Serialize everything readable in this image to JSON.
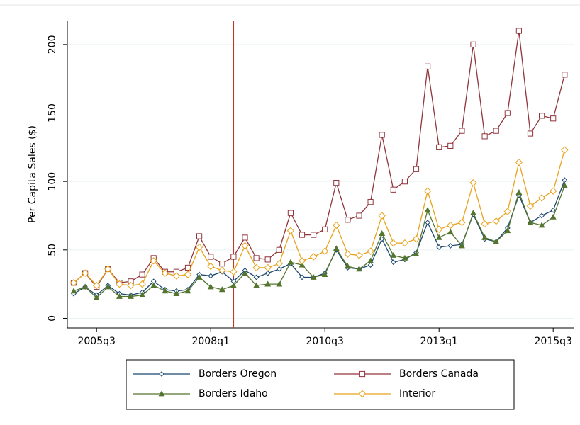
{
  "chart_data": {
    "type": "line",
    "ylabel": "Per Capita Sales ($)",
    "categories": [
      null,
      null,
      "2005q3",
      null,
      null,
      null,
      null,
      null,
      null,
      null,
      null,
      null,
      "2008q1",
      null,
      null,
      null,
      null,
      null,
      null,
      null,
      null,
      null,
      "2010q3",
      null,
      null,
      null,
      null,
      null,
      null,
      null,
      null,
      null,
      "2013q1",
      null,
      null,
      null,
      null,
      null,
      null,
      null,
      null,
      null,
      "2015q3",
      null
    ],
    "ylim": [
      -7,
      217
    ],
    "yticks": [
      0,
      50,
      100,
      150,
      200
    ],
    "grid": true,
    "xline": {
      "index": 14,
      "color": "#c0392b"
    },
    "series": [
      {
        "name": "Borders Oregon",
        "color": "#1a476f",
        "marker": "diamond-filled",
        "values": [
          18,
          23,
          17,
          24,
          18,
          17,
          19,
          27,
          21,
          20,
          21,
          32,
          31,
          34,
          27,
          35,
          30,
          33,
          36,
          40,
          30,
          30,
          33,
          50,
          37,
          36,
          39,
          58,
          41,
          43,
          48,
          70,
          52,
          53,
          54,
          76,
          58,
          56,
          66,
          90,
          70,
          75,
          79,
          101
        ]
      },
      {
        "name": "Borders Canada",
        "color": "#90353b",
        "marker": "square",
        "values": [
          26,
          33,
          23,
          36,
          26,
          27,
          32,
          44,
          34,
          34,
          37,
          60,
          45,
          40,
          45,
          59,
          44,
          43,
          50,
          77,
          61,
          61,
          65,
          99,
          72,
          75,
          85,
          134,
          94,
          100,
          109,
          184,
          125,
          126,
          137,
          200,
          133,
          137,
          150,
          210,
          135,
          148,
          146,
          178
        ]
      },
      {
        "name": "Borders Idaho",
        "color": "#55752f",
        "marker": "triangle",
        "values": [
          20,
          23,
          15,
          23,
          16,
          16,
          17,
          24,
          20,
          18,
          20,
          30,
          23,
          21,
          24,
          33,
          24,
          25,
          25,
          41,
          39,
          30,
          32,
          51,
          38,
          36,
          42,
          62,
          46,
          44,
          47,
          79,
          59,
          63,
          53,
          77,
          59,
          56,
          64,
          92,
          70,
          68,
          74,
          97
        ]
      },
      {
        "name": "Interior",
        "color": "#e8a31e",
        "marker": "diamond",
        "values": [
          26,
          33,
          24,
          36,
          25,
          24,
          25,
          42,
          33,
          31,
          32,
          52,
          38,
          35,
          34,
          53,
          37,
          37,
          40,
          64,
          42,
          45,
          49,
          68,
          47,
          46,
          49,
          75,
          55,
          55,
          58,
          93,
          65,
          68,
          70,
          99,
          69,
          71,
          78,
          114,
          82,
          88,
          93,
          123
        ]
      }
    ]
  }
}
